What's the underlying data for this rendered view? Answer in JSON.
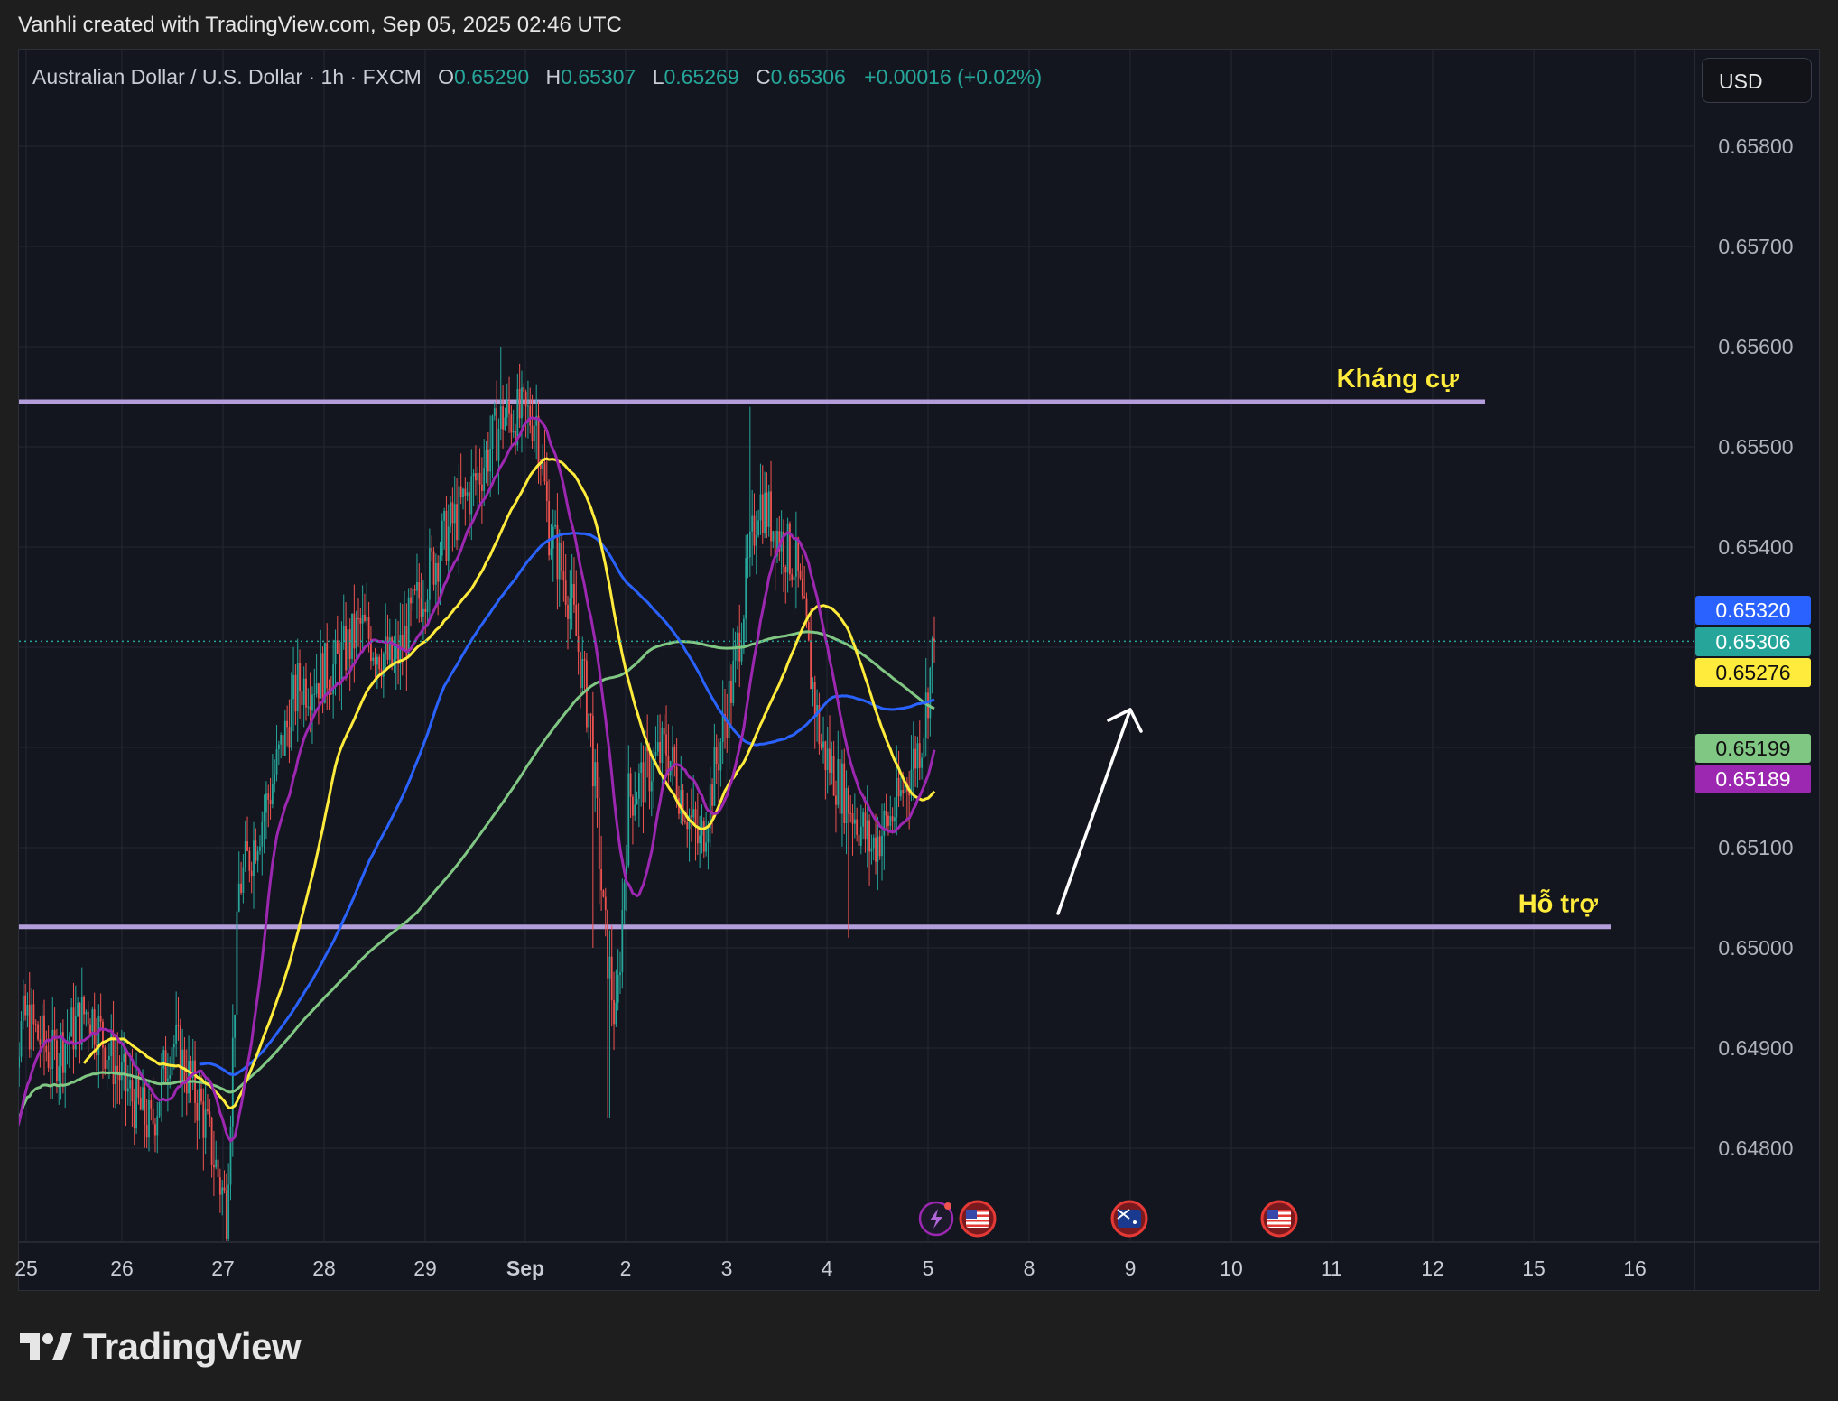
{
  "header": {
    "credit": "Vanhli created with TradingView.com, Sep 05, 2025 02:46 UTC"
  },
  "legend": {
    "symbol": "Australian Dollar / U.S. Dollar · 1h · FXCM",
    "open_label": "O",
    "open": "0.65290",
    "high_label": "H",
    "high": "0.65307",
    "low_label": "L",
    "low": "0.65269",
    "close_label": "C",
    "close": "0.65306",
    "change": "+0.00016 (+0.02%)"
  },
  "currency_button": "USD",
  "brand": "TradingView",
  "colors": {
    "bull": "#26a69a",
    "bear": "#ef5350",
    "ma_purple": "#9c27b0",
    "ma_yellow": "#ffeb3b",
    "ma_blue": "#2962ff",
    "ma_green": "#81c784",
    "level_line": "#b39ddb",
    "annotation_text": "#ffeb3b"
  },
  "chart_data": {
    "type": "candlestick",
    "ylim": [
      0.6472,
      0.6583
    ],
    "y_ticks": [
      "0.65800",
      "0.65700",
      "0.65600",
      "0.65500",
      "0.65400",
      "0.65100",
      "0.65000",
      "0.64900",
      "0.64800"
    ],
    "x_ticks": [
      "25",
      "26",
      "27",
      "28",
      "29",
      "Sep",
      "2",
      "3",
      "4",
      "5",
      "8",
      "9",
      "10",
      "11",
      "12",
      "15",
      "16"
    ],
    "last_price": 0.65306,
    "price_labels": [
      {
        "value": "0.65320",
        "series": "blue MA",
        "color": "#2962ff"
      },
      {
        "value": "0.65306",
        "series": "price",
        "color": "#26a69a"
      },
      {
        "value": "0.65276",
        "series": "yellow MA",
        "color": "#ffeb3b"
      },
      {
        "value": "0.65199",
        "series": "green MA",
        "color": "#81c784"
      },
      {
        "value": "0.65189",
        "series": "purple MA",
        "color": "#9c27b0"
      }
    ],
    "levels": [
      {
        "label": "Kháng cự",
        "value": 0.65545
      },
      {
        "label": "Hỗ trợ",
        "value": 0.65021
      }
    ],
    "closes_approx": [
      {
        "date": "Aug 25",
        "close": 0.6485
      },
      {
        "date": "Aug 26",
        "close": 0.6482
      },
      {
        "date": "Aug 27",
        "close": 0.6478
      },
      {
        "date": "Aug 28",
        "close": 0.6524
      },
      {
        "date": "Aug 29",
        "close": 0.653
      },
      {
        "date": "Aug 31",
        "close": 0.6553
      },
      {
        "date": "Sep 2",
        "close": 0.652
      },
      {
        "date": "Sep 3",
        "close": 0.6525
      },
      {
        "date": "Sep 4",
        "close": 0.6505
      },
      {
        "date": "Sep 5",
        "close": 0.65306
      }
    ],
    "events": [
      {
        "date": "Sep 5",
        "icon": "lightning-icon"
      },
      {
        "date": "Sep 5",
        "icon": "us-flag-icon"
      },
      {
        "date": "Sep 9",
        "icon": "au-flag-icon"
      },
      {
        "date": "Sep 10",
        "icon": "us-flag-icon"
      }
    ],
    "annotations": [
      "arrow-up"
    ]
  }
}
